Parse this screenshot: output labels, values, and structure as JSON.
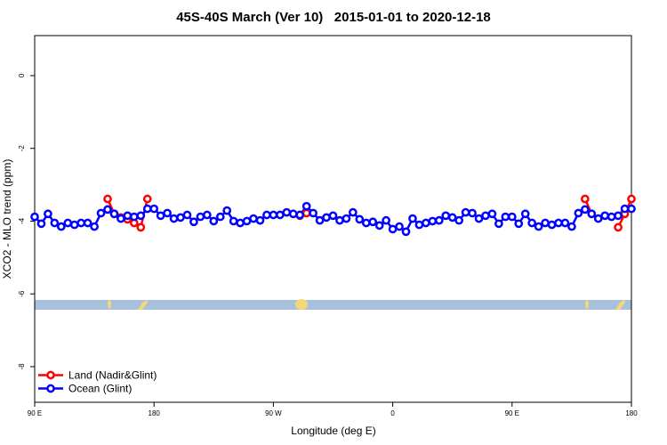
{
  "chart_data": {
    "type": "line",
    "title": "45S-40S March (Ver 10)   2015-01-01 to 2020-12-18",
    "xlabel": "Longitude (deg E)",
    "ylabel": "XCO2 - MLO trend (ppm)",
    "xlim": [
      90,
      540
    ],
    "ylim": [
      -8.98,
      1.1
    ],
    "xticks": [
      {
        "value": 90,
        "label": "90 E"
      },
      180,
      {
        "value": 270,
        "label": "90 W"
      },
      {
        "value": 360,
        "label": "0"
      },
      {
        "value": 450,
        "label": "90 E"
      },
      {
        "value": 540,
        "label": "180"
      }
    ],
    "yticks": [
      0,
      -2,
      -4,
      -6,
      -8
    ],
    "legend": "bottomleft",
    "x": [
      90,
      95,
      100,
      105,
      110,
      115,
      120,
      125,
      130,
      135,
      140,
      145,
      150,
      155,
      160,
      165,
      170,
      175,
      180,
      185,
      190,
      195,
      200,
      205,
      210,
      215,
      220,
      225,
      230,
      235,
      240,
      245,
      250,
      255,
      260,
      265,
      270,
      275,
      280,
      285,
      290,
      295,
      300,
      305,
      310,
      315,
      320,
      325,
      330,
      335,
      340,
      345,
      350,
      355,
      360,
      365,
      370,
      375,
      380,
      385,
      390,
      395,
      400,
      405,
      410,
      415,
      420,
      425,
      430,
      435,
      440,
      445,
      450,
      455,
      460,
      465,
      470,
      475,
      480,
      485,
      490,
      495,
      500,
      505,
      510,
      515,
      520,
      525,
      530,
      535,
      540
    ],
    "series": [
      {
        "name": "Land (Nadir&Glint)",
        "color": "#ff0000",
        "values": [
          null,
          null,
          null,
          null,
          null,
          null,
          null,
          null,
          null,
          null,
          null,
          -3.39,
          -3.8,
          -3.9,
          -3.95,
          -4.05,
          -4.17,
          -3.39,
          null,
          null,
          null,
          null,
          null,
          null,
          null,
          null,
          null,
          null,
          null,
          null,
          null,
          null,
          null,
          null,
          null,
          null,
          null,
          null,
          null,
          null,
          -3.85,
          -3.78,
          null,
          null,
          null,
          null,
          null,
          null,
          null,
          null,
          null,
          null,
          null,
          null,
          null,
          null,
          null,
          null,
          null,
          null,
          null,
          null,
          null,
          null,
          null,
          null,
          null,
          null,
          null,
          null,
          null,
          null,
          null,
          null,
          null,
          null,
          null,
          null,
          null,
          null,
          null,
          null,
          null,
          -3.39,
          -3.8,
          null,
          null,
          null,
          -4.17,
          -3.8,
          -3.39
        ]
      },
      {
        "name": "Ocean (Glint)",
        "color": "#0000ff",
        "values": [
          -3.88,
          -4.07,
          -3.8,
          -4.05,
          -4.15,
          -4.05,
          -4.1,
          -4.05,
          -4.05,
          -4.15,
          -3.78,
          -3.68,
          -3.8,
          -3.93,
          -3.85,
          -3.88,
          -3.85,
          -3.66,
          -3.66,
          -3.85,
          -3.78,
          -3.93,
          -3.9,
          -3.83,
          -4.02,
          -3.88,
          -3.83,
          -4.0,
          -3.88,
          -3.71,
          -4.0,
          -4.05,
          -4.0,
          -3.93,
          -3.98,
          -3.83,
          -3.83,
          -3.83,
          -3.76,
          -3.8,
          -3.83,
          -3.59,
          -3.78,
          -3.98,
          -3.9,
          -3.85,
          -3.98,
          -3.93,
          -3.76,
          -3.95,
          -4.05,
          -4.02,
          -4.12,
          -3.98,
          -4.22,
          -4.15,
          -4.29,
          -3.93,
          -4.1,
          -4.05,
          -4.0,
          -3.98,
          -3.85,
          -3.9,
          -3.98,
          -3.76,
          -3.78,
          -3.93,
          -3.85,
          -3.8,
          -4.07,
          -3.88,
          -3.88,
          -4.07,
          -3.8,
          -4.05,
          -4.15,
          -4.05,
          -4.1,
          -4.05,
          -4.05,
          -4.15,
          -3.78,
          -3.68,
          -3.8,
          -3.93,
          -3.85,
          -3.88,
          -3.85,
          -3.66,
          -3.66
        ]
      }
    ]
  }
}
